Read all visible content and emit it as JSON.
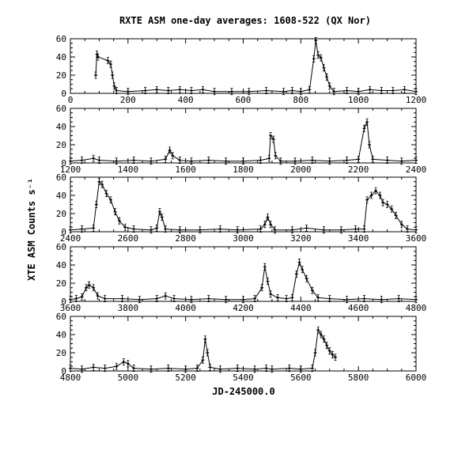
{
  "figure": {
    "title": "RXTE ASM one-day averages: 1608-522 (QX Nor)",
    "ylabel": "XTE ASM Counts s⁻¹",
    "xlabel": "JD-245000.0"
  },
  "chart_data": [
    {
      "type": "line",
      "xlim": [
        0,
        1200
      ],
      "ylim": [
        0,
        60
      ],
      "yticks": [
        "0",
        "20",
        "40",
        "60"
      ],
      "xticks": [
        "0",
        "200",
        "400",
        "600",
        "800",
        "1000",
        "1200"
      ],
      "series": [
        {
          "points": [
            [
              88,
              20
            ],
            [
              92,
              43
            ],
            [
              96,
              40
            ],
            [
              130,
              36
            ],
            [
              140,
              32
            ],
            [
              146,
              20
            ],
            [
              152,
              8
            ],
            [
              160,
              3
            ],
            [
              200,
              2
            ],
            [
              260,
              3
            ],
            [
              300,
              4
            ],
            [
              340,
              3
            ],
            [
              380,
              4
            ],
            [
              420,
              3
            ],
            [
              460,
              4
            ],
            [
              500,
              2
            ],
            [
              560,
              2
            ],
            [
              620,
              2
            ],
            [
              680,
              3
            ],
            [
              740,
              2
            ],
            [
              770,
              3
            ],
            [
              800,
              2
            ],
            [
              830,
              4
            ],
            [
              845,
              38
            ],
            [
              852,
              58
            ],
            [
              860,
              42
            ],
            [
              870,
              39
            ],
            [
              880,
              28
            ],
            [
              890,
              18
            ],
            [
              900,
              8
            ],
            [
              915,
              2
            ],
            [
              960,
              3
            ],
            [
              1000,
              2
            ],
            [
              1040,
              4
            ],
            [
              1080,
              3
            ],
            [
              1120,
              3
            ],
            [
              1160,
              4
            ],
            [
              1200,
              2
            ]
          ]
        }
      ]
    },
    {
      "type": "line",
      "xlim": [
        1200,
        2400
      ],
      "ylim": [
        0,
        60
      ],
      "yticks": [
        "0",
        "20",
        "40",
        "60"
      ],
      "xticks": [
        "1200",
        "1400",
        "1600",
        "1800",
        "2000",
        "2200",
        "2400"
      ],
      "series": [
        {
          "points": [
            [
              1200,
              2
            ],
            [
              1240,
              3
            ],
            [
              1280,
              5
            ],
            [
              1300,
              3
            ],
            [
              1360,
              2
            ],
            [
              1420,
              3
            ],
            [
              1480,
              2
            ],
            [
              1530,
              4
            ],
            [
              1545,
              14
            ],
            [
              1555,
              8
            ],
            [
              1580,
              3
            ],
            [
              1620,
              2
            ],
            [
              1680,
              3
            ],
            [
              1740,
              2
            ],
            [
              1800,
              2
            ],
            [
              1860,
              3
            ],
            [
              1890,
              5
            ],
            [
              1895,
              30
            ],
            [
              1905,
              26
            ],
            [
              1912,
              8
            ],
            [
              1930,
              2
            ],
            [
              1980,
              2
            ],
            [
              2040,
              3
            ],
            [
              2100,
              2
            ],
            [
              2160,
              3
            ],
            [
              2200,
              4
            ],
            [
              2220,
              38
            ],
            [
              2230,
              45
            ],
            [
              2238,
              20
            ],
            [
              2250,
              4
            ],
            [
              2300,
              3
            ],
            [
              2350,
              2
            ],
            [
              2400,
              3
            ]
          ]
        }
      ]
    },
    {
      "type": "line",
      "xlim": [
        2400,
        3600
      ],
      "ylim": [
        0,
        60
      ],
      "yticks": [
        "0",
        "20",
        "40",
        "60"
      ],
      "xticks": [
        "2400",
        "2600",
        "2800",
        "3000",
        "3200",
        "3400",
        "3600"
      ],
      "series": [
        {
          "points": [
            [
              2400,
              2
            ],
            [
              2440,
              3
            ],
            [
              2480,
              4
            ],
            [
              2490,
              30
            ],
            [
              2500,
              55
            ],
            [
              2510,
              52
            ],
            [
              2525,
              42
            ],
            [
              2540,
              35
            ],
            [
              2555,
              22
            ],
            [
              2570,
              12
            ],
            [
              2590,
              5
            ],
            [
              2620,
              3
            ],
            [
              2680,
              2
            ],
            [
              2700,
              4
            ],
            [
              2710,
              22
            ],
            [
              2718,
              16
            ],
            [
              2730,
              3
            ],
            [
              2780,
              2
            ],
            [
              2850,
              2
            ],
            [
              2920,
              3
            ],
            [
              2980,
              2
            ],
            [
              3060,
              3
            ],
            [
              3075,
              8
            ],
            [
              3085,
              16
            ],
            [
              3095,
              8
            ],
            [
              3110,
              2
            ],
            [
              3170,
              2
            ],
            [
              3220,
              4
            ],
            [
              3280,
              2
            ],
            [
              3340,
              2
            ],
            [
              3390,
              3
            ],
            [
              3420,
              3
            ],
            [
              3430,
              35
            ],
            [
              3445,
              40
            ],
            [
              3460,
              45
            ],
            [
              3475,
              40
            ],
            [
              3485,
              32
            ],
            [
              3500,
              30
            ],
            [
              3515,
              25
            ],
            [
              3530,
              18
            ],
            [
              3550,
              8
            ],
            [
              3570,
              3
            ],
            [
              3600,
              2
            ]
          ]
        }
      ]
    },
    {
      "type": "line",
      "xlim": [
        3600,
        4800
      ],
      "ylim": [
        0,
        60
      ],
      "yticks": [
        "0",
        "20",
        "40",
        "60"
      ],
      "xticks": [
        "3600",
        "3800",
        "4000",
        "4200",
        "4400",
        "4600",
        "4800"
      ],
      "series": [
        {
          "points": [
            [
              3600,
              2
            ],
            [
              3620,
              3
            ],
            [
              3640,
              5
            ],
            [
              3655,
              15
            ],
            [
              3665,
              18
            ],
            [
              3680,
              15
            ],
            [
              3695,
              6
            ],
            [
              3720,
              3
            ],
            [
              3780,
              3
            ],
            [
              3840,
              2
            ],
            [
              3900,
              3
            ],
            [
              3930,
              6
            ],
            [
              3960,
              3
            ],
            [
              4020,
              2
            ],
            [
              4080,
              3
            ],
            [
              4140,
              2
            ],
            [
              4200,
              2
            ],
            [
              4240,
              3
            ],
            [
              4265,
              15
            ],
            [
              4275,
              38
            ],
            [
              4285,
              22
            ],
            [
              4295,
              8
            ],
            [
              4320,
              4
            ],
            [
              4350,
              3
            ],
            [
              4370,
              4
            ],
            [
              4385,
              30
            ],
            [
              4395,
              43
            ],
            [
              4405,
              35
            ],
            [
              4420,
              25
            ],
            [
              4440,
              12
            ],
            [
              4460,
              4
            ],
            [
              4500,
              3
            ],
            [
              4560,
              2
            ],
            [
              4620,
              3
            ],
            [
              4680,
              2
            ],
            [
              4740,
              3
            ],
            [
              4800,
              2
            ]
          ]
        }
      ]
    },
    {
      "type": "line",
      "xlim": [
        4800,
        6000
      ],
      "ylim": [
        0,
        60
      ],
      "yticks": [
        "0",
        "20",
        "40",
        "60"
      ],
      "xticks": [
        "4800",
        "5000",
        "5200",
        "5400",
        "5600",
        "5800",
        "6000"
      ],
      "series": [
        {
          "points": [
            [
              4800,
              3
            ],
            [
              4840,
              2
            ],
            [
              4880,
              4
            ],
            [
              4920,
              3
            ],
            [
              4960,
              5
            ],
            [
              4985,
              10
            ],
            [
              5000,
              8
            ],
            [
              5020,
              3
            ],
            [
              5080,
              2
            ],
            [
              5140,
              3
            ],
            [
              5200,
              2
            ],
            [
              5240,
              3
            ],
            [
              5260,
              12
            ],
            [
              5268,
              35
            ],
            [
              5276,
              20
            ],
            [
              5285,
              4
            ],
            [
              5320,
              2
            ],
            [
              5380,
              3
            ],
            [
              5440,
              2
            ],
            [
              5480,
              3
            ],
            [
              5500,
              2
            ],
            [
              5560,
              3
            ],
            [
              5600,
              2
            ],
            [
              5640,
              3
            ],
            [
              5650,
              20
            ],
            [
              5660,
              45
            ],
            [
              5670,
              40
            ],
            [
              5680,
              35
            ],
            [
              5690,
              28
            ],
            [
              5700,
              22
            ],
            [
              5710,
              18
            ],
            [
              5720,
              15
            ]
          ]
        }
      ]
    }
  ]
}
